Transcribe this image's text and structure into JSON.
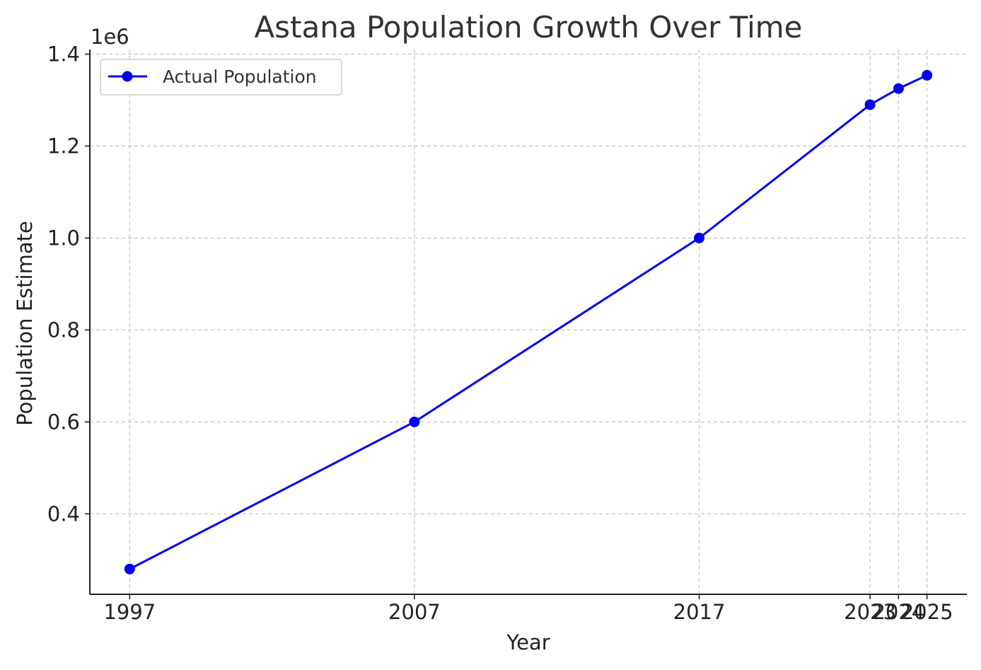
{
  "chart_data": {
    "type": "line",
    "title": "Astana Population Growth Over Time",
    "xlabel": "Year",
    "ylabel": "Population Estimate",
    "y_offset_label": "1e6",
    "x_ticks": [
      1997,
      2007,
      2017,
      2023,
      2024,
      2025
    ],
    "y_ticks": [
      0.4,
      0.6,
      0.8,
      1.0,
      1.2,
      1.4
    ],
    "y_tick_labels": [
      "0.4",
      "0.6",
      "0.8",
      "1.0",
      "1.2",
      "1.4"
    ],
    "xlim": [
      1995.6,
      2026.4
    ],
    "ylim": [
      0.225,
      1.41
    ],
    "grid": true,
    "legend": "top-left",
    "series": [
      {
        "name": "Actual Population",
        "color": "#0000ee",
        "marker": "circle",
        "x": [
          1997,
          2007,
          2017,
          2023,
          2024,
          2025
        ],
        "y": [
          0.28,
          0.6,
          1.0,
          1.29,
          1.325,
          1.354
        ]
      }
    ]
  }
}
